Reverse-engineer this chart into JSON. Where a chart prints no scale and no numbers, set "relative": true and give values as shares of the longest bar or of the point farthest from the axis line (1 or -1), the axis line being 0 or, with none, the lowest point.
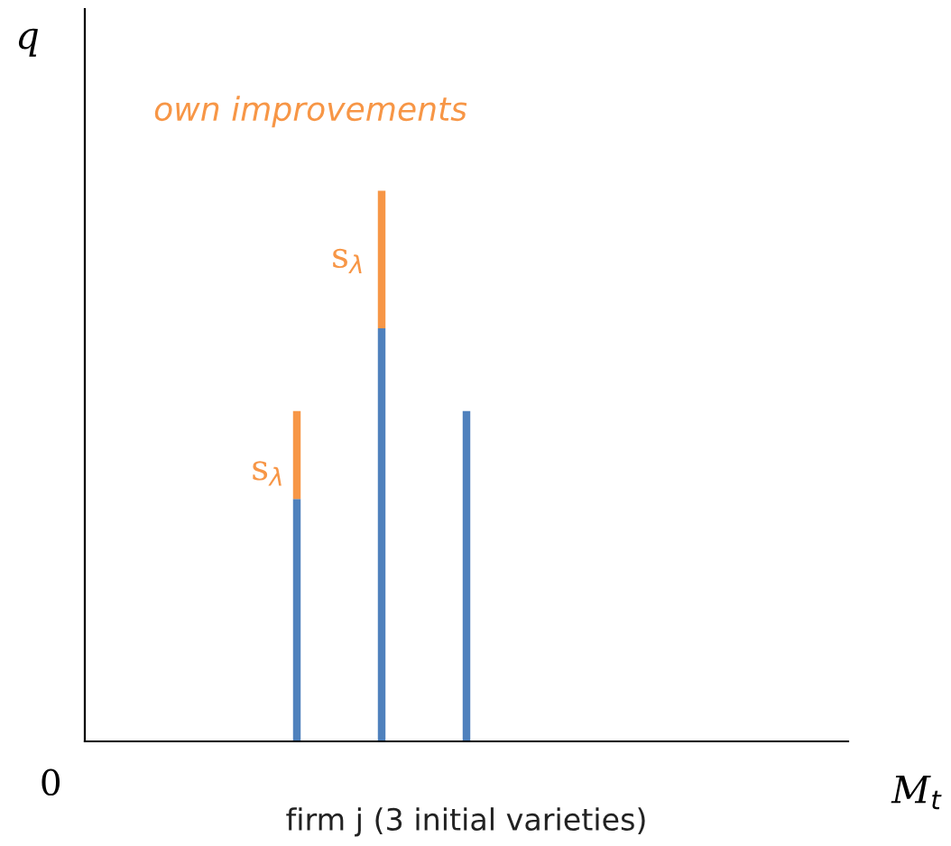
{
  "chart_data": {
    "type": "bar",
    "relative": true,
    "stacked": true,
    "categories": [
      null,
      null,
      null
    ],
    "series": [
      {
        "color": "#4f81bd",
        "values": [
          0.44,
          0.75,
          0.6
        ]
      },
      {
        "color": "#f79646",
        "values": [
          0.16,
          0.25,
          null
        ]
      }
    ],
    "annotations": [
      "q",
      "M$_{t}$",
      "0",
      "firm j (3 initial varieties)",
      "own improvements",
      "s$_{λ}$",
      "s$_{λ}$"
    ],
    "grid": false,
    "legend": false
  }
}
